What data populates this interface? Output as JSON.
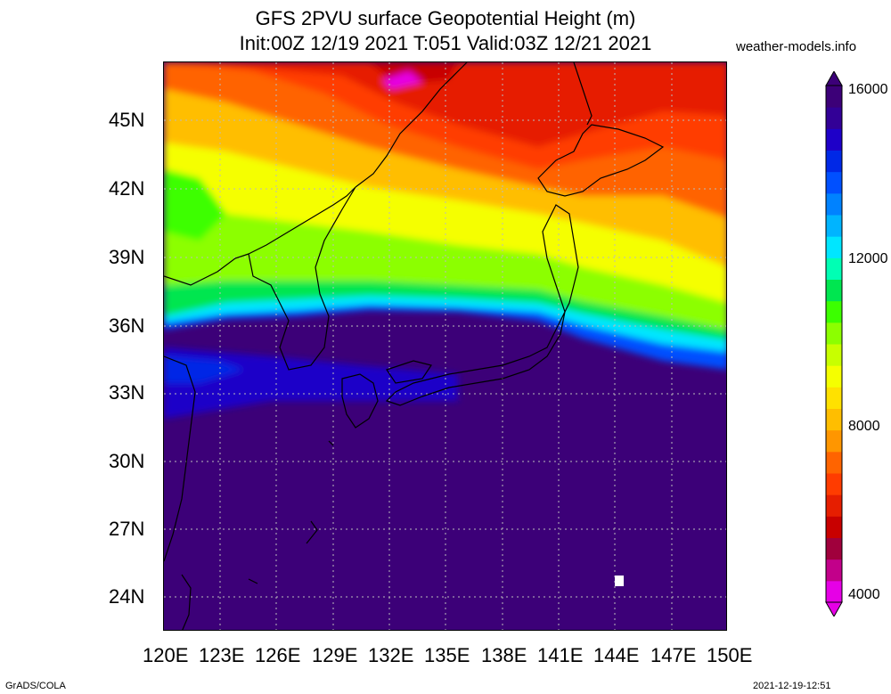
{
  "title": {
    "line1": "GFS 2PVU surface Geopotential Height (m)",
    "line2": "Init:00Z 12/19 2021 T:051 Valid:03Z 12/21 2021"
  },
  "site": "weather-models.info",
  "lat_labels": [
    "45N",
    "42N",
    "39N",
    "36N",
    "33N",
    "30N",
    "27N",
    "24N"
  ],
  "lon_labels": [
    "120E",
    "123E",
    "126E",
    "129E",
    "132E",
    "135E",
    "138E",
    "141E",
    "144E",
    "147E",
    "150E"
  ],
  "colorbar": {
    "labels": [
      "16000",
      "12000",
      "8000",
      "4000"
    ],
    "colors": [
      "#e600e6",
      "#c2008a",
      "#a0003c",
      "#c80000",
      "#e61e00",
      "#ff3c00",
      "#ff6400",
      "#ff9600",
      "#ffbe00",
      "#ffe100",
      "#f5ff00",
      "#c8ff00",
      "#8cff00",
      "#3cff00",
      "#00e650",
      "#00ffb4",
      "#00e6ff",
      "#00b4ff",
      "#0082ff",
      "#0050ff",
      "#0028e6",
      "#1e00c8",
      "#320096",
      "#3c0078"
    ]
  },
  "footer": {
    "left": "GrADS/COLA",
    "right": "2021-12-19-12:51"
  }
}
